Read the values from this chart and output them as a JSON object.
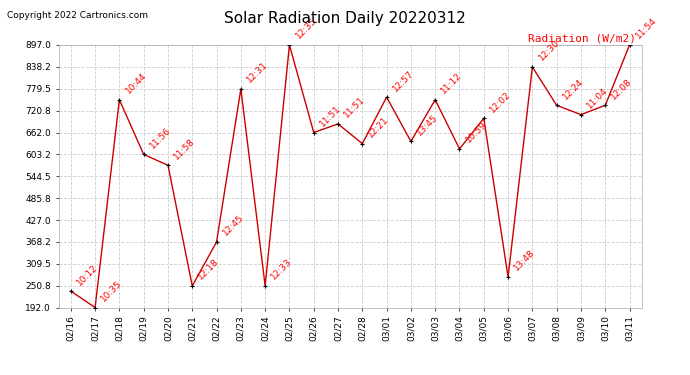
{
  "title": "Solar Radiation Daily 20220312",
  "copyright": "Copyright 2022 Cartronics.com",
  "ylabel": "Radiation (W/m2)",
  "ylabel_color": "#ff0000",
  "line_color": "#cc0000",
  "marker_color": "#000000",
  "label_color": "#ff0000",
  "bg_color": "#ffffff",
  "grid_color": "#cccccc",
  "ylim_min": 192.0,
  "ylim_max": 897.0,
  "yticks": [
    192.0,
    250.8,
    309.5,
    368.2,
    427.0,
    485.8,
    544.5,
    603.2,
    662.0,
    720.8,
    779.5,
    838.2,
    897.0
  ],
  "dates": [
    "2022-02-16",
    "2022-02-17",
    "2022-02-18",
    "2022-02-19",
    "2022-02-20",
    "2022-02-21",
    "2022-02-22",
    "2022-02-23",
    "2022-02-24",
    "2022-02-25",
    "2022-02-26",
    "2022-02-27",
    "2022-02-28",
    "2022-03-01",
    "2022-03-02",
    "2022-03-03",
    "2022-03-04",
    "2022-03-05",
    "2022-03-06",
    "2022-03-07",
    "2022-03-08",
    "2022-03-09",
    "2022-03-10",
    "2022-03-11"
  ],
  "values": [
    236,
    192,
    750,
    603,
    574,
    250,
    368,
    779,
    250,
    897,
    662,
    685,
    632,
    757,
    638,
    750,
    618,
    700,
    274,
    838,
    735,
    710,
    735,
    897
  ],
  "time_labels": [
    "10:12",
    "10:35",
    "10:44",
    "11:56",
    "11:58",
    "12:18",
    "12:45",
    "12:31",
    "12:33",
    "12:35",
    "11:51",
    "11:51",
    "12:21",
    "12:57",
    "13:45",
    "11:12",
    "10:59",
    "12:02",
    "13:48",
    "12:30",
    "12:24",
    "11:04",
    "12:08",
    "11:54"
  ],
  "xtick_labels": [
    "02/16",
    "02/17",
    "02/18",
    "02/19",
    "02/20",
    "02/21",
    "02/22",
    "02/23",
    "02/24",
    "02/25",
    "02/26",
    "02/27",
    "02/28",
    "03/01",
    "03/02",
    "03/03",
    "03/04",
    "03/05",
    "03/06",
    "03/07",
    "03/08",
    "03/09",
    "03/10",
    "03/11"
  ],
  "title_fontsize": 11,
  "copyright_fontsize": 6.5,
  "tick_fontsize": 6.5,
  "label_fontsize": 6.5,
  "ylabel_fontsize": 8
}
